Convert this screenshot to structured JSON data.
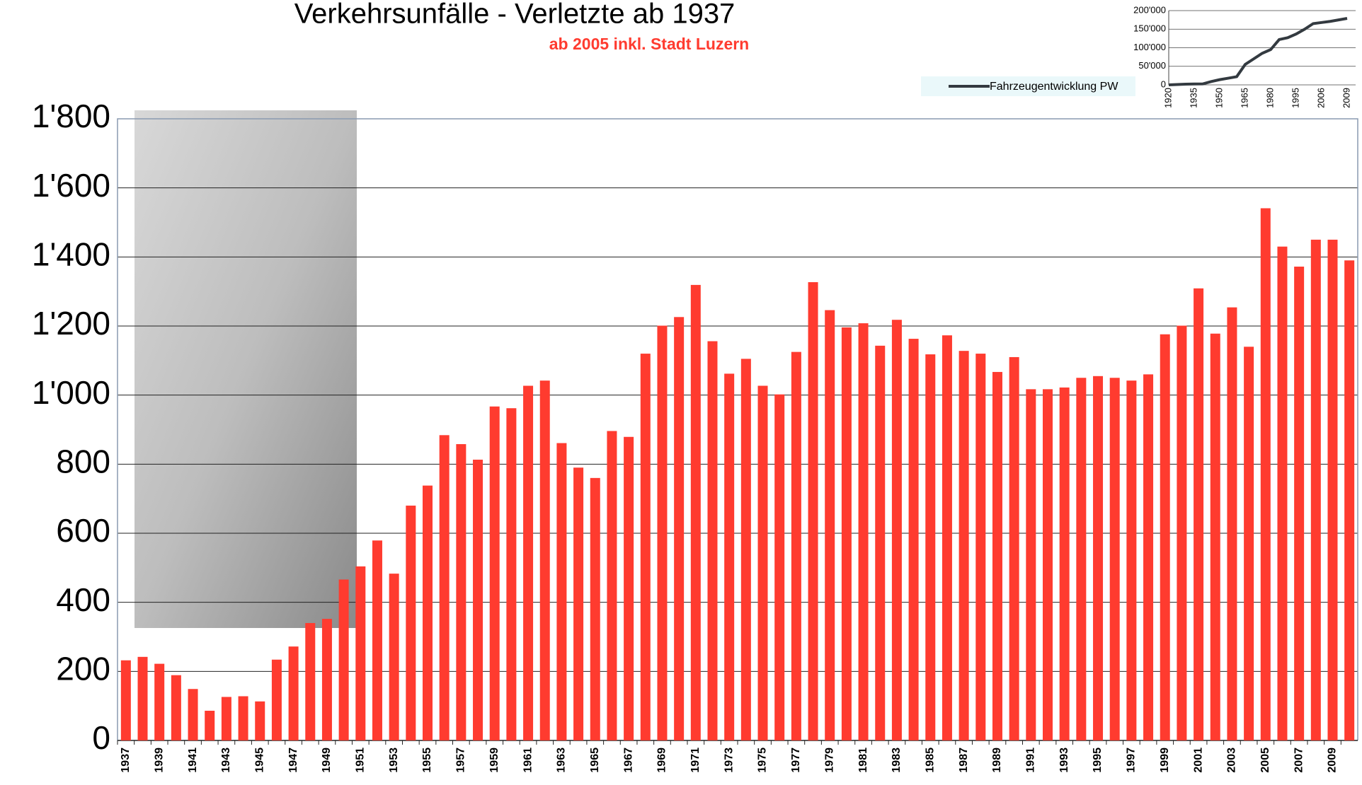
{
  "chart_data": [
    {
      "type": "bar",
      "title": "Verkehrsunfälle - Verletzte ab 1937",
      "subtitle": "ab 2005 inkl. Stadt Luzern",
      "categories": [
        "1937",
        null,
        "1939",
        null,
        "1941",
        null,
        "1943",
        null,
        "1945",
        null,
        "1947",
        null,
        "1949",
        null,
        "1951",
        null,
        "1953",
        null,
        "1955",
        null,
        "1957",
        null,
        "1959",
        null,
        "1961",
        null,
        "1963",
        null,
        "1965",
        null,
        "1967",
        null,
        "1969",
        null,
        "1971",
        null,
        "1973",
        null,
        "1975",
        null,
        "1977",
        null,
        "1979",
        null,
        "1981",
        null,
        "1983",
        null,
        "1985",
        null,
        "1987",
        null,
        "1989",
        null,
        "1991",
        null,
        "1993",
        null,
        "1995",
        null,
        "1997",
        null,
        "1999",
        null,
        "2001",
        null,
        "2003",
        null,
        "2005",
        null,
        "2007",
        null,
        "2009",
        null
      ],
      "values": [
        232,
        242,
        222,
        189,
        149,
        86,
        126,
        128,
        113,
        234,
        272,
        340,
        352,
        466,
        504,
        579,
        483,
        680,
        738,
        884,
        858,
        813,
        967,
        962,
        1027,
        1042,
        861,
        790,
        760,
        896,
        879,
        1120,
        1201,
        1226,
        1319,
        1156,
        1062,
        1105,
        1027,
        1002,
        1125,
        1327,
        1246,
        1196,
        1208,
        1143,
        1218,
        1163,
        1118,
        1173,
        1128,
        1120,
        1067,
        1110,
        1017,
        1017,
        1022,
        1050,
        1055,
        1050,
        1042,
        1060,
        1176,
        1201,
        1309,
        1178,
        1254,
        1140,
        1541,
        1430,
        1372,
        1450,
        1450,
        1390
      ],
      "color": "#ff3b2f",
      "ylim": [
        0,
        1800
      ],
      "yticks": [
        0,
        200,
        400,
        600,
        800,
        {
          "value": 1000,
          "label": "1'000"
        },
        {
          "value": 1200,
          "label": "1'200"
        },
        {
          "value": 1400,
          "label": "1'400"
        },
        {
          "value": 1600,
          "label": "1'600"
        },
        {
          "value": 1800,
          "label": "1'800"
        }
      ],
      "grid": true
    },
    {
      "type": "line",
      "categories": [
        "1920",
        null,
        null,
        "1935",
        null,
        null,
        "1950",
        null,
        null,
        "1965",
        null,
        null,
        "1980",
        null,
        null,
        "1995",
        null,
        null,
        "2006",
        null,
        null,
        "2009"
      ],
      "series": [
        {
          "name": "Fahrzeugentwicklung PW",
          "color": "#333a40",
          "values": [
            0,
            1000,
            2000,
            2300,
            2500,
            9000,
            14000,
            18000,
            22000,
            55000,
            70000,
            85000,
            95000,
            122000,
            127000,
            137000,
            150000,
            165000,
            168000,
            171000,
            175000,
            179000
          ]
        }
      ],
      "ylim": [
        0,
        200000
      ],
      "yticks": [
        0,
        {
          "value": 50000,
          "label": "50'000"
        },
        {
          "value": 100000,
          "label": "100'000"
        },
        {
          "value": 150000,
          "label": "150'000"
        },
        {
          "value": 200000,
          "label": "200'000"
        }
      ],
      "grid": true,
      "legend": "left"
    }
  ]
}
